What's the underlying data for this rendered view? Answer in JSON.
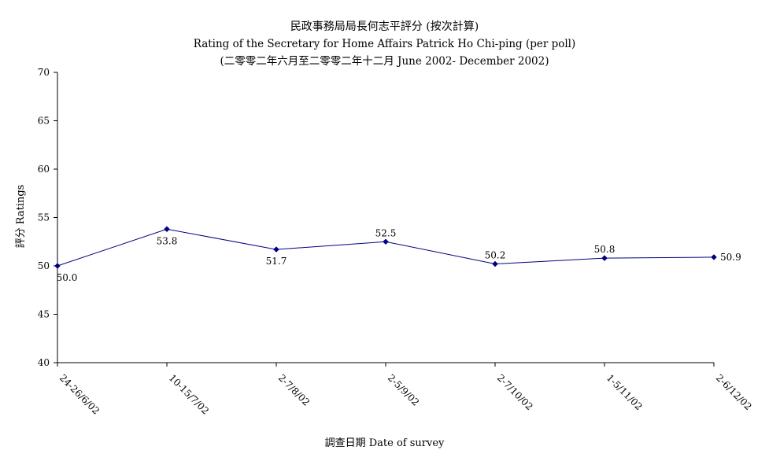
{
  "chart_data": {
    "type": "line",
    "title": "民政事務局局長何志平評分 (按次計算)",
    "subtitle": "Rating of the Secretary for Home Affairs Patrick Ho Chi-ping (per poll)",
    "subtitle2": "(二零零二年六月至二零零二年十二月 June 2002- December 2002)",
    "xlabel": "調查日期 Date of survey",
    "ylabel": "評分 Ratings",
    "categories": [
      "24-26/6/02",
      "10-15/7/02",
      "2-7/8/02",
      "2-5/9/02",
      "2-7/10/02",
      "1-5/11/02",
      "2-6/12/02"
    ],
    "series": [
      {
        "values": [
          50.0,
          53.8,
          51.7,
          52.5,
          50.2,
          50.8,
          50.9
        ]
      }
    ],
    "data_labels": [
      "50.0",
      "53.8",
      "51.7",
      "52.5",
      "50.2",
      "50.8",
      "50.9"
    ],
    "ylim": [
      40,
      70
    ],
    "yticks": [
      40,
      45,
      50,
      55,
      60,
      65,
      70
    ],
    "grid": false,
    "legend": "none",
    "colors": {
      "line": "#000080",
      "marker": "#000080",
      "axis": "#000000"
    }
  }
}
